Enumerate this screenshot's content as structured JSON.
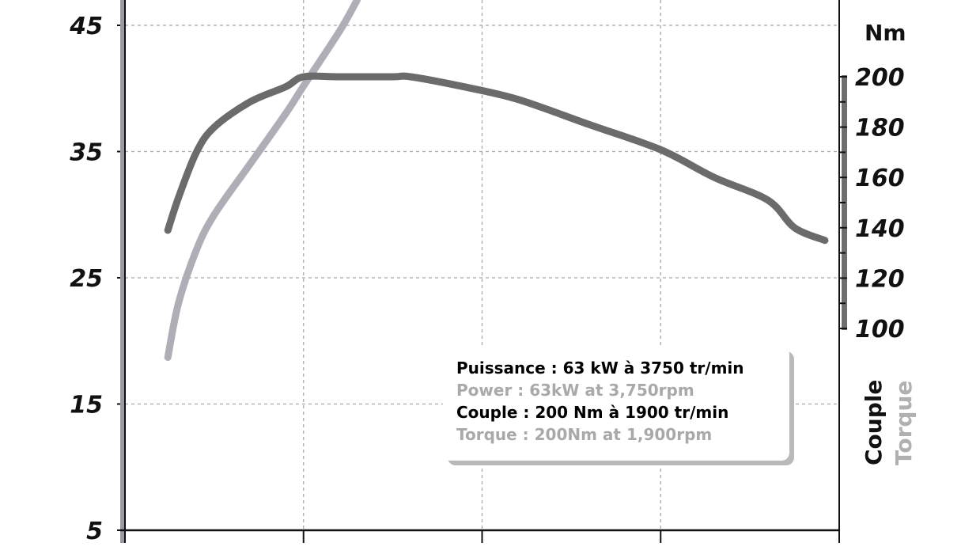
{
  "chart_data": {
    "type": "line",
    "title": "",
    "xlabel": "",
    "left_axis": {
      "unit": "",
      "ticks": [
        "45",
        "35",
        "25",
        "15",
        "5"
      ],
      "tick_values": [
        45,
        35,
        25,
        15,
        5
      ],
      "range": [
        5,
        47
      ]
    },
    "right_axis": {
      "unit": "Nm",
      "ticks": [
        "200",
        "180",
        "160",
        "140",
        "120",
        "100"
      ],
      "tick_values": [
        200,
        180,
        160,
        140,
        120,
        100
      ],
      "range": [
        100,
        200
      ]
    },
    "vertical_labels": {
      "couple": "Couple",
      "torque": "Torque"
    },
    "grid": true,
    "x_range": [
      0,
      4000
    ],
    "x_gridlines": [
      1000,
      2000,
      3000
    ],
    "series": [
      {
        "key": "torque",
        "axis": "right",
        "color": "#6b6b6b",
        "points": [
          [
            240,
            139
          ],
          [
            300,
            152
          ],
          [
            400,
            170
          ],
          [
            500,
            180
          ],
          [
            700,
            190
          ],
          [
            900,
            196
          ],
          [
            1000,
            200
          ],
          [
            1200,
            200
          ],
          [
            1500,
            200
          ],
          [
            1600,
            200
          ],
          [
            1900,
            196
          ],
          [
            2200,
            191
          ],
          [
            2600,
            181
          ],
          [
            3000,
            171
          ],
          [
            3300,
            160
          ],
          [
            3600,
            151
          ],
          [
            3750,
            140
          ],
          [
            3920,
            135
          ]
        ]
      },
      {
        "key": "power",
        "axis": "left",
        "color": "#aeaeb6",
        "points": [
          [
            240,
            18.7
          ],
          [
            300,
            23
          ],
          [
            400,
            27.2
          ],
          [
            500,
            30
          ],
          [
            700,
            34
          ],
          [
            900,
            38
          ],
          [
            1000,
            40.2
          ],
          [
            1200,
            44.5
          ],
          [
            1300,
            47
          ]
        ]
      }
    ]
  },
  "info_box": {
    "lines": [
      {
        "text": "Puissance : 63 kW à 3750 tr/min",
        "color": "#000000"
      },
      {
        "text": "Power : 63kW at 3,750rpm",
        "color": "#a9a9a9"
      },
      {
        "text": "Couple : 200 Nm à 1900 tr/min",
        "color": "#000000"
      },
      {
        "text": "Torque : 200Nm at 1,900rpm",
        "color": "#a9a9a9"
      }
    ]
  },
  "colors": {
    "torque_line": "#6b6b6b",
    "power_line": "#aeaeb6",
    "right_axis_bar": "#6e6e6e",
    "left_axis_bar": "#9a9aa2",
    "grid": "#a8a8a8",
    "torque_label": "#111111",
    "power_label": "#b0b0b0"
  }
}
